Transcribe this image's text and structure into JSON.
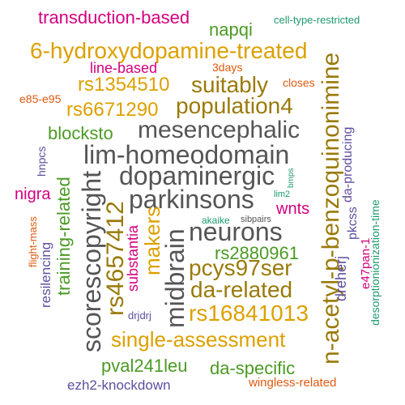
{
  "colors": {
    "purple": "#5E4F9E",
    "magenta": "#D4007F",
    "olive": "#9A7A0A",
    "gold": "#DDA000",
    "orange": "#E0590E",
    "green": "#4B9A24",
    "teal": "#1E9A6E",
    "gray": "#555555"
  },
  "words": [
    {
      "id": "transduction",
      "text": "transduction-based",
      "color": "magenta"
    },
    {
      "id": "napqi",
      "text": "napqi",
      "color": "green"
    },
    {
      "id": "cell-type",
      "text": "cell-type-restricted",
      "color": "teal"
    },
    {
      "id": "hydroxy",
      "text": "6-hydroxydopamine-treated",
      "color": "gold"
    },
    {
      "id": "line-based",
      "text": "line-based",
      "color": "magenta"
    },
    {
      "id": "3days",
      "text": "3days",
      "color": "orange"
    },
    {
      "id": "rs1354510",
      "text": "rs1354510",
      "color": "gold"
    },
    {
      "id": "suitably",
      "text": "suitably",
      "color": "olive"
    },
    {
      "id": "closes",
      "text": "closes",
      "color": "orange"
    },
    {
      "id": "e85",
      "text": "e85-e95",
      "color": "orange"
    },
    {
      "id": "rs6671290",
      "text": "rs6671290",
      "color": "gold"
    },
    {
      "id": "population4",
      "text": "population4",
      "color": "olive"
    },
    {
      "id": "mesencephalic",
      "text": "mesencephalic",
      "color": "gray"
    },
    {
      "id": "blocksto",
      "text": "blocksto",
      "color": "green"
    },
    {
      "id": "lim-homeodomain",
      "text": "lim-homeodomain",
      "color": "gray"
    },
    {
      "id": "dopaminergic",
      "text": "dopaminergic",
      "color": "gray"
    },
    {
      "id": "parkinsons",
      "text": "parkinsons",
      "color": "gray"
    },
    {
      "id": "neurons",
      "text": "neurons",
      "color": "gray"
    },
    {
      "id": "nigra",
      "text": "nigra",
      "color": "magenta"
    },
    {
      "id": "wnts",
      "text": "wnts",
      "color": "magenta"
    },
    {
      "id": "lim2",
      "text": "lim2",
      "color": "teal"
    },
    {
      "id": "akaike",
      "text": "akaike",
      "color": "teal"
    },
    {
      "id": "sibpairs",
      "text": "sibpairs",
      "color": "gray"
    },
    {
      "id": "rs2880961",
      "text": "rs2880961",
      "color": "green"
    },
    {
      "id": "pcys97ser",
      "text": "pcys97ser",
      "color": "olive"
    },
    {
      "id": "da-related",
      "text": "da-related",
      "color": "olive"
    },
    {
      "id": "drjdrj",
      "text": "drjdrj",
      "color": "purple"
    },
    {
      "id": "rs16841013",
      "text": "rs16841013",
      "color": "gold"
    },
    {
      "id": "single-assessment",
      "text": "single-assessment",
      "color": "gold"
    },
    {
      "id": "pval241leu",
      "text": "pval241leu",
      "color": "green"
    },
    {
      "id": "da-specific",
      "text": "da-specific",
      "color": "green"
    },
    {
      "id": "ezh2",
      "text": "ezh2-knockdown",
      "color": "purple"
    },
    {
      "id": "wingless",
      "text": "wingless-related",
      "color": "orange"
    },
    {
      "id": "n-acetyl",
      "text": "n-acetyl-p-benzoquinonimine",
      "color": "olive"
    },
    {
      "id": "da-producing",
      "text": "da-producing",
      "color": "purple"
    },
    {
      "id": "pkcss",
      "text": "pkcss",
      "color": "purple"
    },
    {
      "id": "desorption",
      "text": "desorptionionization-time",
      "color": "teal"
    },
    {
      "id": "e47pan-1",
      "text": "e47pan-1",
      "color": "magenta"
    },
    {
      "id": "dreherj",
      "text": "dreherj",
      "color": "purple"
    },
    {
      "id": "scorescopyright",
      "text": "scorescopyright",
      "color": "gray"
    },
    {
      "id": "rs4657412",
      "text": "rs4657412",
      "color": "olive"
    },
    {
      "id": "substantia",
      "text": "substantia",
      "color": "magenta"
    },
    {
      "id": "makers",
      "text": "makers",
      "color": "gold"
    },
    {
      "id": "midbrain",
      "text": "midbrain",
      "color": "gray"
    },
    {
      "id": "training-related",
      "text": "training-related",
      "color": "green"
    },
    {
      "id": "resilencing",
      "text": "resilencing",
      "color": "purple"
    },
    {
      "id": "flight-mass",
      "text": "flight-mass",
      "color": "orange"
    },
    {
      "id": "hnpcs",
      "text": "hnpcs",
      "color": "purple"
    },
    {
      "id": "bmps",
      "text": "bmps",
      "color": "teal"
    }
  ]
}
